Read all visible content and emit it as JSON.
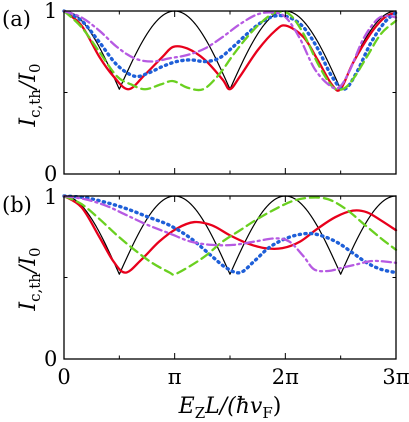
{
  "chart_data": [
    {
      "type": "line",
      "panel_label": "(a)",
      "ylabel": "I_c,th/I_0",
      "ylim": [
        0,
        1
      ],
      "yticks": [
        "0",
        "1"
      ],
      "xlim": [
        0,
        9.4248
      ],
      "show_xticklabels": false,
      "series": [
        {
          "color": "#000000",
          "style": "solid",
          "x": [
            0,
            1.5708,
            3.1416,
            4.7124,
            6.2832,
            7.854,
            9.4248
          ],
          "y": [
            1.0,
            0.52,
            1.0,
            0.52,
            1.0,
            0.52,
            1.0
          ],
          "shape": "arch"
        },
        {
          "color": "#e8001c",
          "style": "solid",
          "x": [
            0.0,
            0.5,
            1.0,
            1.4,
            1.83,
            2.3,
            2.8,
            3.1,
            3.5,
            4.0,
            4.5,
            4.71,
            5.0,
            5.5,
            6.0,
            6.3,
            6.8,
            7.2,
            7.6,
            7.85,
            8.2,
            8.7,
            9.1,
            9.4248
          ],
          "y": [
            1.0,
            0.91,
            0.72,
            0.6,
            0.52,
            0.61,
            0.72,
            0.78,
            0.77,
            0.7,
            0.58,
            0.52,
            0.6,
            0.76,
            0.88,
            0.91,
            0.84,
            0.7,
            0.55,
            0.52,
            0.68,
            0.86,
            0.96,
            0.99
          ]
        },
        {
          "color": "#1e5fd8",
          "style": "dotted",
          "x": [
            0.0,
            0.5,
            1.0,
            1.5,
            2.0,
            2.4,
            2.8,
            3.2,
            3.6,
            4.0,
            4.4,
            4.8,
            5.2,
            5.6,
            6.0,
            6.4,
            6.8,
            7.2,
            7.6,
            7.95,
            8.3,
            8.7,
            9.1,
            9.4248
          ],
          "y": [
            1.0,
            0.94,
            0.81,
            0.67,
            0.6,
            0.62,
            0.66,
            0.69,
            0.7,
            0.69,
            0.71,
            0.78,
            0.86,
            0.93,
            0.97,
            0.96,
            0.9,
            0.77,
            0.6,
            0.52,
            0.62,
            0.8,
            0.93,
            0.99
          ]
        },
        {
          "color": "#6ad020",
          "style": "dashed",
          "x": [
            0.0,
            0.5,
            1.0,
            1.5,
            1.9,
            2.3,
            2.75,
            3.1,
            3.5,
            3.95,
            4.4,
            4.8,
            5.2,
            5.6,
            6.0,
            6.4,
            6.8,
            7.2,
            7.6,
            7.9,
            8.2,
            8.6,
            9.0,
            9.4248
          ],
          "y": [
            1.0,
            0.9,
            0.75,
            0.6,
            0.55,
            0.52,
            0.55,
            0.57,
            0.53,
            0.52,
            0.61,
            0.73,
            0.84,
            0.93,
            0.99,
            0.98,
            0.86,
            0.68,
            0.54,
            0.52,
            0.58,
            0.72,
            0.86,
            0.94
          ]
        },
        {
          "color": "#b65ae2",
          "style": "dashdot",
          "x": [
            0.0,
            0.5,
            1.0,
            1.5,
            2.0,
            2.5,
            3.0,
            3.5,
            4.0,
            4.5,
            5.0,
            5.5,
            5.95,
            6.3,
            6.7,
            7.1,
            7.5,
            7.8,
            8.1,
            8.5,
            8.9,
            9.2,
            9.4248
          ],
          "y": [
            1.0,
            0.96,
            0.88,
            0.78,
            0.71,
            0.69,
            0.71,
            0.73,
            0.77,
            0.84,
            0.92,
            0.98,
            0.99,
            0.96,
            0.83,
            0.65,
            0.55,
            0.53,
            0.63,
            0.83,
            0.95,
            0.97,
            0.96
          ]
        }
      ]
    },
    {
      "type": "line",
      "panel_label": "(b)",
      "ylabel": "I_c,th/I_0",
      "ylim": [
        0,
        1
      ],
      "yticks": [
        "0",
        "1"
      ],
      "xlim": [
        0,
        9.4248
      ],
      "xticks": [
        {
          "value": 0,
          "label": "0"
        },
        {
          "value": 3.1416,
          "label": "π"
        },
        {
          "value": 6.2832,
          "label": "2π"
        },
        {
          "value": 9.4248,
          "label": "3π"
        }
      ],
      "xlabel": "E_Z L/(ħv_F)",
      "series": [
        {
          "color": "#000000",
          "style": "solid",
          "x": [
            0,
            1.5708,
            3.1416,
            4.7124,
            6.2832,
            7.854,
            9.4248
          ],
          "y": [
            1.0,
            0.52,
            1.0,
            0.52,
            1.0,
            0.52,
            1.0
          ],
          "shape": "arch"
        },
        {
          "color": "#e8001c",
          "style": "solid",
          "x": [
            0.0,
            0.5,
            1.0,
            1.4,
            1.75,
            2.2,
            2.7,
            3.2,
            3.7,
            4.2,
            4.7,
            5.2,
            5.7,
            6.2,
            6.7,
            7.2,
            7.7,
            8.2,
            8.6,
            9.0,
            9.4248
          ],
          "y": [
            1.0,
            0.93,
            0.75,
            0.6,
            0.53,
            0.61,
            0.72,
            0.8,
            0.84,
            0.82,
            0.76,
            0.71,
            0.68,
            0.68,
            0.72,
            0.8,
            0.87,
            0.91,
            0.9,
            0.85,
            0.79
          ]
        },
        {
          "color": "#1e5fd8",
          "style": "dotted",
          "x": [
            0.0,
            0.6,
            1.2,
            1.8,
            2.4,
            3.0,
            3.6,
            4.2,
            4.6,
            5.0,
            5.4,
            5.8,
            6.2,
            6.6,
            7.0,
            7.4,
            7.8,
            8.2,
            8.6,
            9.0,
            9.4248
          ],
          "y": [
            1.0,
            0.99,
            0.96,
            0.92,
            0.87,
            0.82,
            0.74,
            0.63,
            0.56,
            0.53,
            0.6,
            0.68,
            0.73,
            0.76,
            0.77,
            0.75,
            0.71,
            0.65,
            0.59,
            0.55,
            0.53
          ]
        },
        {
          "color": "#6ad020",
          "style": "dashed",
          "x": [
            0.0,
            0.5,
            1.0,
            1.5,
            2.0,
            2.5,
            3.0,
            3.14,
            3.5,
            4.0,
            4.5,
            5.0,
            5.5,
            6.0,
            6.5,
            7.0,
            7.5,
            8.0,
            8.5,
            9.0,
            9.4248
          ],
          "y": [
            1.0,
            0.95,
            0.86,
            0.76,
            0.67,
            0.59,
            0.53,
            0.52,
            0.56,
            0.63,
            0.72,
            0.79,
            0.86,
            0.92,
            0.97,
            0.99,
            0.98,
            0.92,
            0.83,
            0.74,
            0.67
          ]
        },
        {
          "color": "#b65ae2",
          "style": "dashdot",
          "x": [
            0.0,
            0.6,
            1.2,
            1.8,
            2.4,
            3.0,
            3.6,
            4.2,
            4.8,
            5.4,
            6.0,
            6.4,
            6.8,
            7.1,
            7.5,
            7.9,
            8.3,
            8.7,
            9.0,
            9.4248
          ],
          "y": [
            1.0,
            0.98,
            0.94,
            0.88,
            0.82,
            0.77,
            0.72,
            0.7,
            0.7,
            0.72,
            0.74,
            0.72,
            0.63,
            0.55,
            0.54,
            0.56,
            0.58,
            0.6,
            0.6,
            0.59
          ]
        }
      ]
    }
  ]
}
